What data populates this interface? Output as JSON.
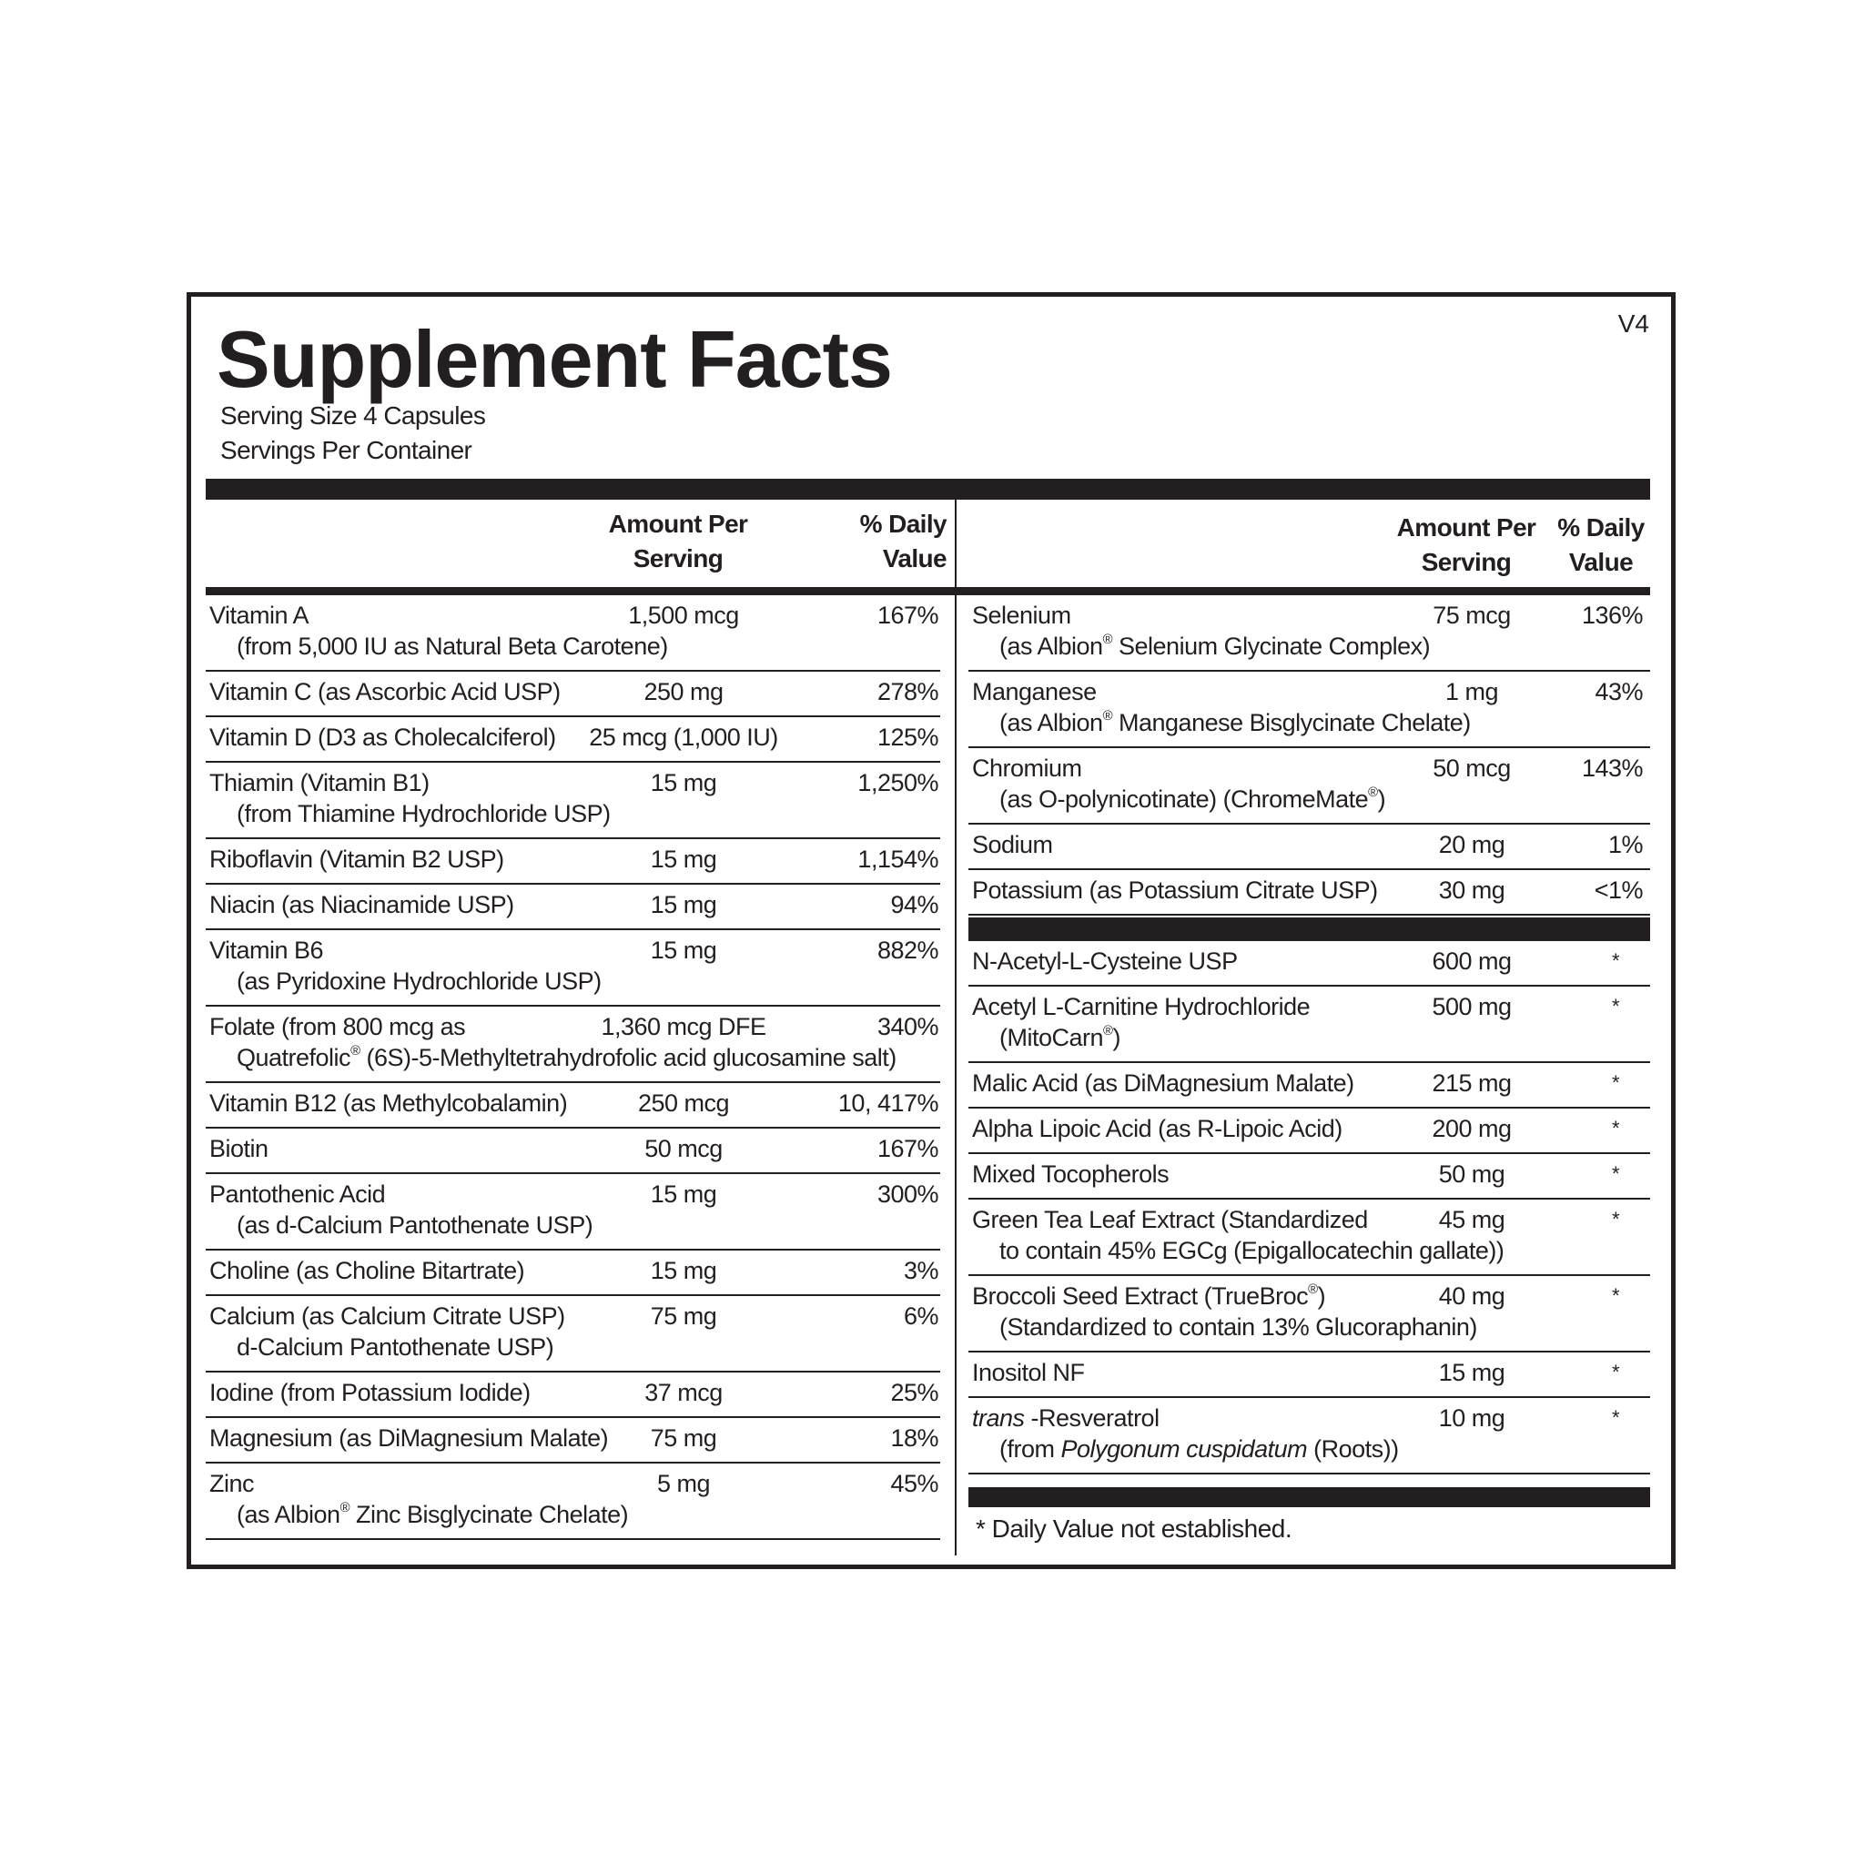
{
  "title": "Supplement Facts",
  "version": "V4",
  "serving_size": "Serving Size  4 Capsules",
  "servings_per_container": "Servings Per Container",
  "headers": {
    "amount_line1": "Amount Per",
    "amount_line2": "Serving",
    "dv_line1": "% Daily",
    "dv_line2": "Value"
  },
  "left_rows": [
    {
      "name": "Vitamin A",
      "sub": "(from 5,000 IU as Natural Beta Carotene)",
      "amount": "1,500 mcg",
      "dv": "167%"
    },
    {
      "name": "Vitamin C (as Ascorbic Acid USP)",
      "amount": "250 mg",
      "dv": "278%"
    },
    {
      "name": "Vitamin D (D3 as Cholecalciferol)",
      "amount": "25 mcg (1,000 IU)",
      "dv": "125%"
    },
    {
      "name": "Thiamin (Vitamin B1)",
      "sub": "(from Thiamine Hydrochloride USP)",
      "amount": "15 mg",
      "dv": "1,250%"
    },
    {
      "name": "Riboflavin (Vitamin B2 USP)",
      "amount": "15 mg",
      "dv": "1,154%"
    },
    {
      "name": "Niacin (as Niacinamide USP)",
      "amount": "15 mg",
      "dv": "94%"
    },
    {
      "name": "Vitamin B6",
      "sub": "(as Pyridoxine Hydrochloride USP)",
      "amount": "15 mg",
      "dv": "882%"
    },
    {
      "name": "Folate (from 800 mcg as",
      "sub": "Quatrefolic® (6S)-5-Methyltetrahydrofolic acid glucosamine salt)",
      "amount": "1,360 mcg DFE",
      "dv": "340%"
    },
    {
      "name": "Vitamin B12 (as Methylcobalamin)",
      "amount": "250 mcg",
      "dv": "10, 417%"
    },
    {
      "name": "Biotin",
      "amount": "50 mcg",
      "dv": "167%"
    },
    {
      "name": "Pantothenic Acid",
      "sub": "(as d-Calcium Pantothenate USP)",
      "amount": "15 mg",
      "dv": "300%"
    },
    {
      "name": "Choline (as Choline Bitartrate)",
      "amount": "15 mg",
      "dv": "3%"
    },
    {
      "name": "Calcium (as Calcium Citrate USP)",
      "sub": "d-Calcium Pantothenate USP)",
      "amount": "75 mg",
      "dv": "6%"
    },
    {
      "name": "Iodine (from Potassium Iodide)",
      "amount": "37 mcg",
      "dv": "25%"
    },
    {
      "name": "Magnesium (as DiMagnesium Malate)",
      "amount": "75 mg",
      "dv": "18%"
    },
    {
      "name": "Zinc",
      "sub": "(as Albion® Zinc Bisglycinate Chelate)",
      "amount": "5 mg",
      "dv": "45%"
    }
  ],
  "right_rows_1": [
    {
      "name": "Selenium",
      "sub": "(as Albion® Selenium Glycinate Complex)",
      "amount": "75 mcg",
      "dv": "136%"
    },
    {
      "name": "Manganese",
      "sub": "(as Albion® Manganese Bisglycinate Chelate)",
      "amount": "1 mg",
      "dv": "43%"
    },
    {
      "name": "Chromium",
      "sub": "(as O-polynicotinate) (ChromeMate®)",
      "amount": "50 mcg",
      "dv": "143%"
    },
    {
      "name": "Sodium",
      "amount": "20 mg",
      "dv": "1%"
    },
    {
      "name": "Potassium (as Potassium Citrate USP)",
      "amount": "30 mg",
      "dv": "<1%"
    }
  ],
  "right_rows_2": [
    {
      "name": "N-Acetyl-L-Cysteine USP",
      "amount": "600 mg",
      "dv": "*"
    },
    {
      "name": "Acetyl L-Carnitine Hydrochloride",
      "sub": "(MitoCarn®)",
      "amount": "500 mg",
      "dv": "*"
    },
    {
      "name": "Malic Acid (as DiMagnesium Malate)",
      "amount": "215 mg",
      "dv": "*"
    },
    {
      "name": "Alpha Lipoic Acid (as R-Lipoic Acid)",
      "amount": "200 mg",
      "dv": "*"
    },
    {
      "name": "Mixed Tocopherols",
      "amount": "50 mg",
      "dv": "*"
    },
    {
      "name": "Green Tea Leaf Extract (Standardized",
      "sub": "to contain 45% EGCg (Epigallocatechin gallate))",
      "amount": "45 mg",
      "dv": "*"
    },
    {
      "name": "Broccoli Seed Extract (TrueBroc®)",
      "sub": "(Standardized to contain 13% Glucoraphanin)",
      "amount": "40 mg",
      "dv": "*"
    },
    {
      "name": "Inositol NF",
      "amount": "15 mg",
      "dv": "*"
    },
    {
      "name": [
        {
          "text": "trans",
          "italic": true
        },
        {
          "text": " -Resveratrol"
        }
      ],
      "sub": [
        {
          "text": "(from "
        },
        {
          "text": "Polygonum cuspidatum",
          "italic": true
        },
        {
          "text": " (Roots))"
        }
      ],
      "amount": "10 mg",
      "dv": "*"
    }
  ],
  "footnote": "*  Daily Value not established."
}
